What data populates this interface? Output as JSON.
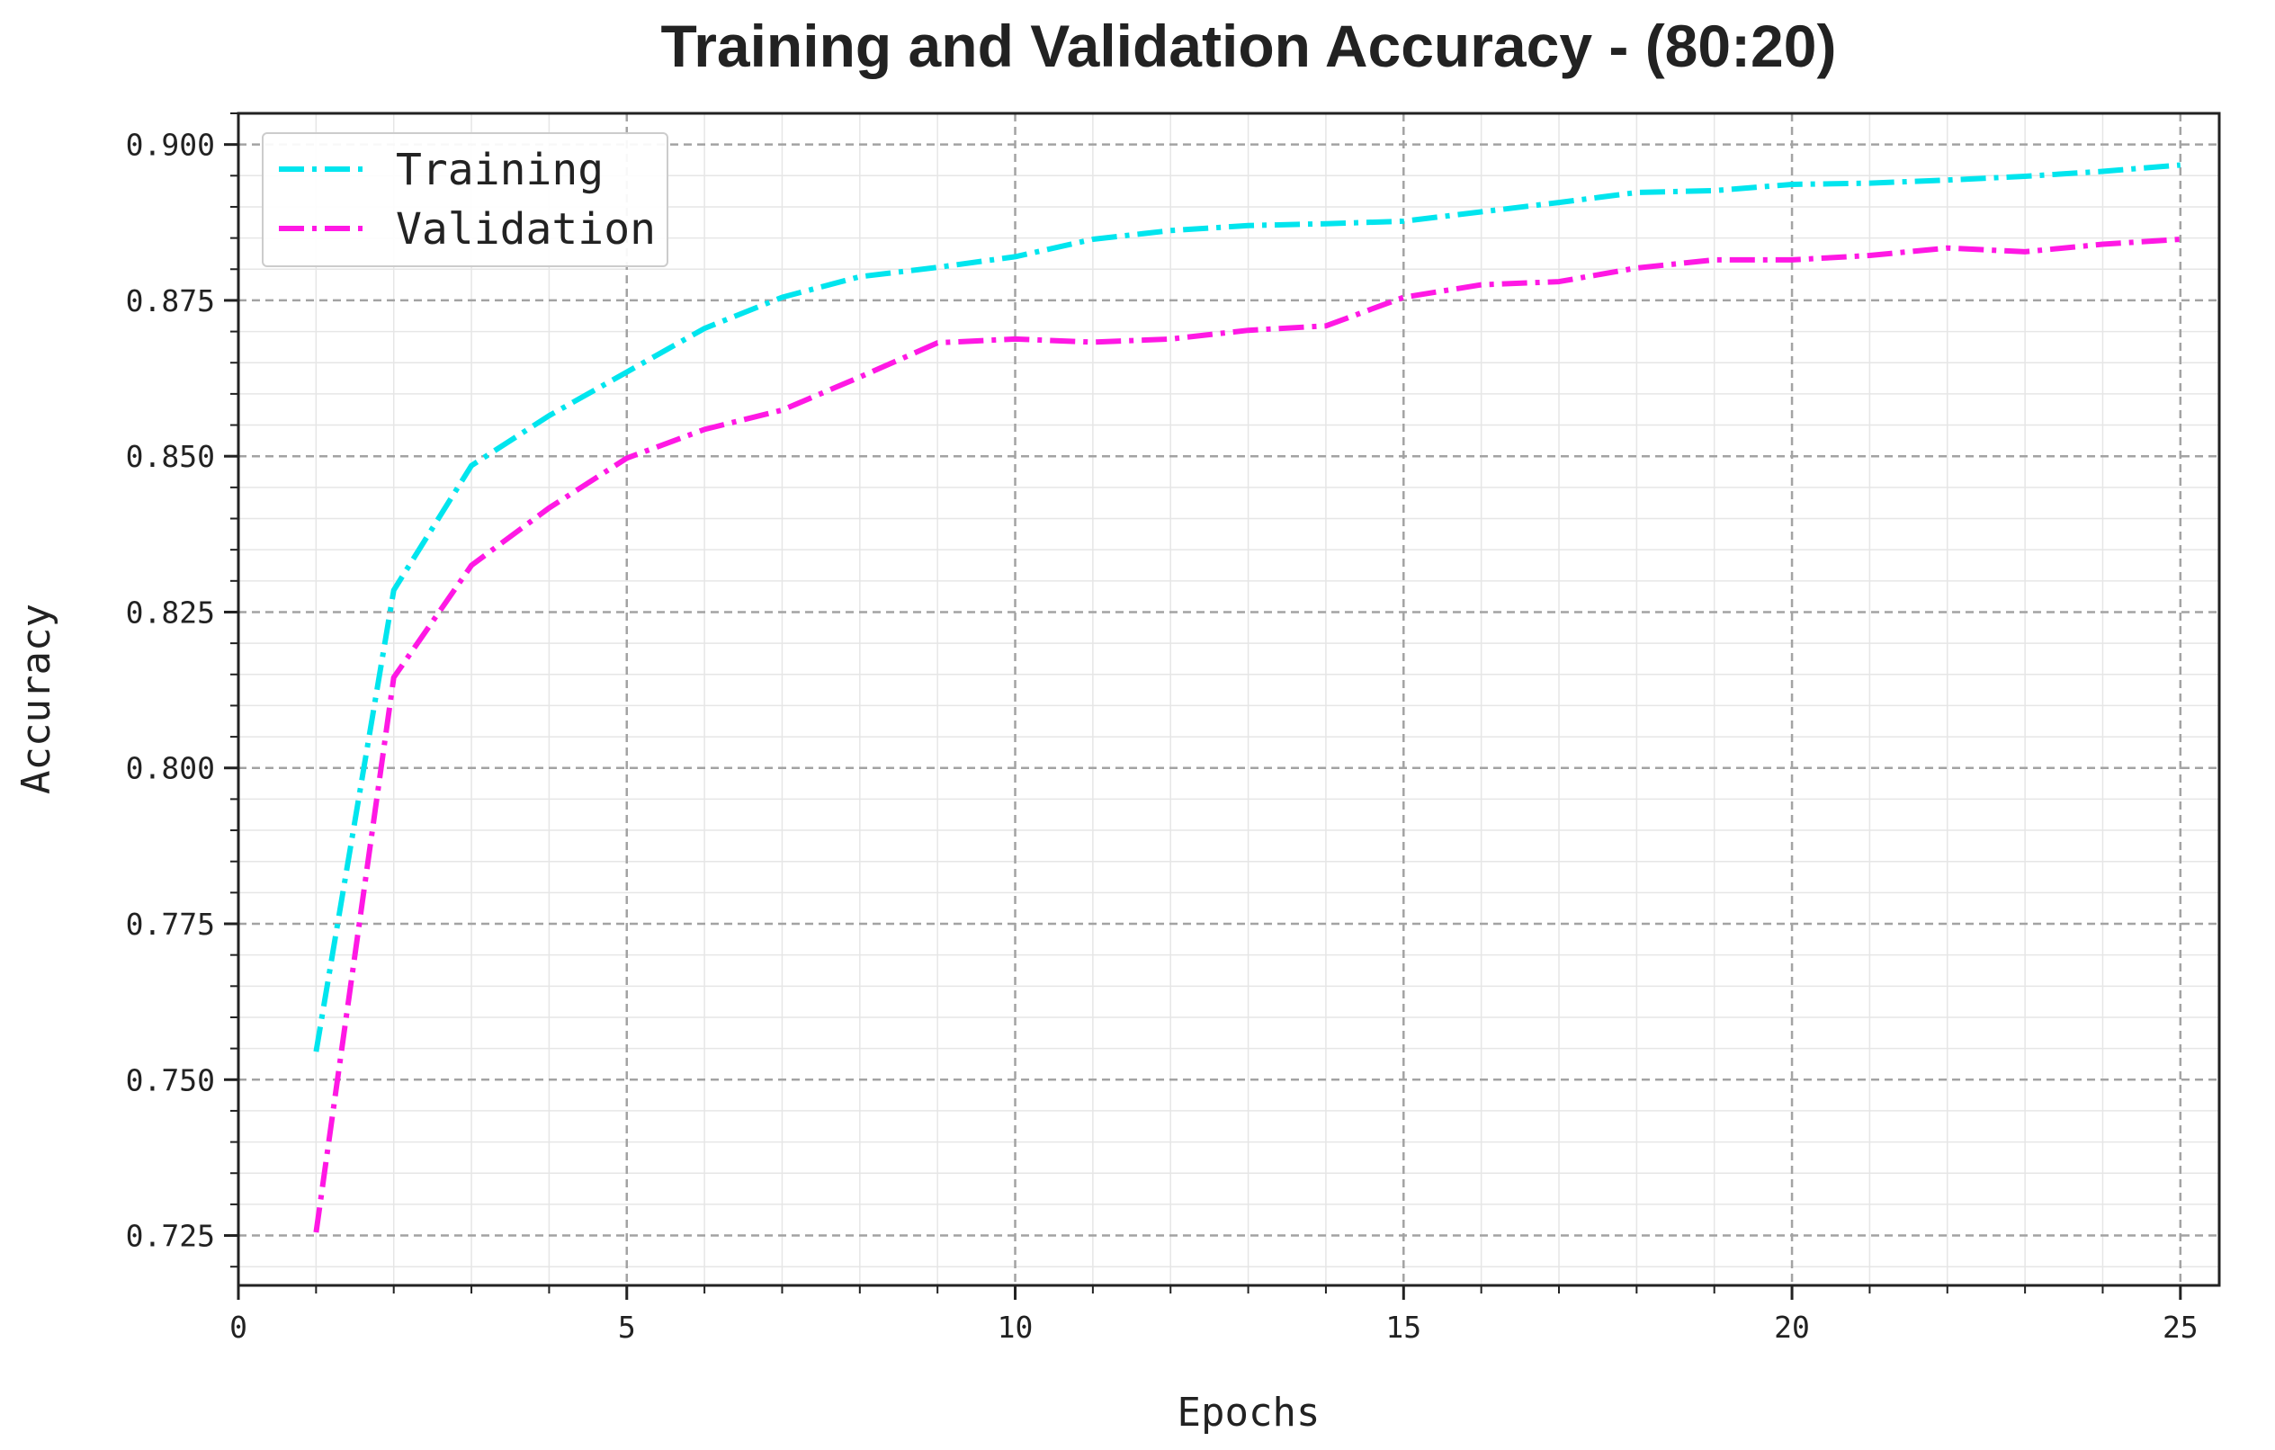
{
  "chart_data": {
    "type": "line",
    "title": "Training and Validation Accuracy - (80:20)",
    "xlabel": "Epochs",
    "ylabel": "Accuracy",
    "xlim": [
      0,
      25.5
    ],
    "ylim": [
      0.717,
      0.905
    ],
    "xticks": [
      0,
      5,
      10,
      15,
      20,
      25
    ],
    "xtick_labels": [
      "0",
      "5",
      "10",
      "15",
      "20",
      "25"
    ],
    "yticks": [
      0.725,
      0.75,
      0.775,
      0.8,
      0.825,
      0.85,
      0.875,
      0.9
    ],
    "ytick_labels": [
      "0.725",
      "0.750",
      "0.775",
      "0.800",
      "0.825",
      "0.850",
      "0.875",
      "0.900"
    ],
    "x_minor_step": 1,
    "y_minor_step": 0.005,
    "grid": true,
    "legend_position": "top-left",
    "x": [
      1,
      2,
      3,
      4,
      5,
      6,
      7,
      8,
      9,
      10,
      11,
      12,
      13,
      14,
      15,
      16,
      17,
      18,
      19,
      20,
      21,
      22,
      23,
      24,
      25
    ],
    "series": [
      {
        "name": "Training",
        "color": "#00e5ee",
        "line_style": "dashdot",
        "values": [
          0.7545,
          0.8285,
          0.8485,
          0.8565,
          0.8635,
          0.8705,
          0.8755,
          0.8788,
          0.8803,
          0.882,
          0.8848,
          0.8862,
          0.887,
          0.8873,
          0.8877,
          0.8892,
          0.8907,
          0.8923,
          0.8926,
          0.8936,
          0.8938,
          0.8943,
          0.8949,
          0.8957,
          0.8967
        ]
      },
      {
        "name": "Validation",
        "color": "#ff18e4",
        "line_style": "dashdot",
        "values": [
          0.7255,
          0.8145,
          0.8325,
          0.8417,
          0.8497,
          0.8543,
          0.8574,
          0.8627,
          0.8682,
          0.8688,
          0.8683,
          0.8688,
          0.8702,
          0.8709,
          0.8755,
          0.8775,
          0.878,
          0.8802,
          0.8815,
          0.8815,
          0.8822,
          0.8834,
          0.8828,
          0.884,
          0.8848
        ]
      }
    ]
  }
}
